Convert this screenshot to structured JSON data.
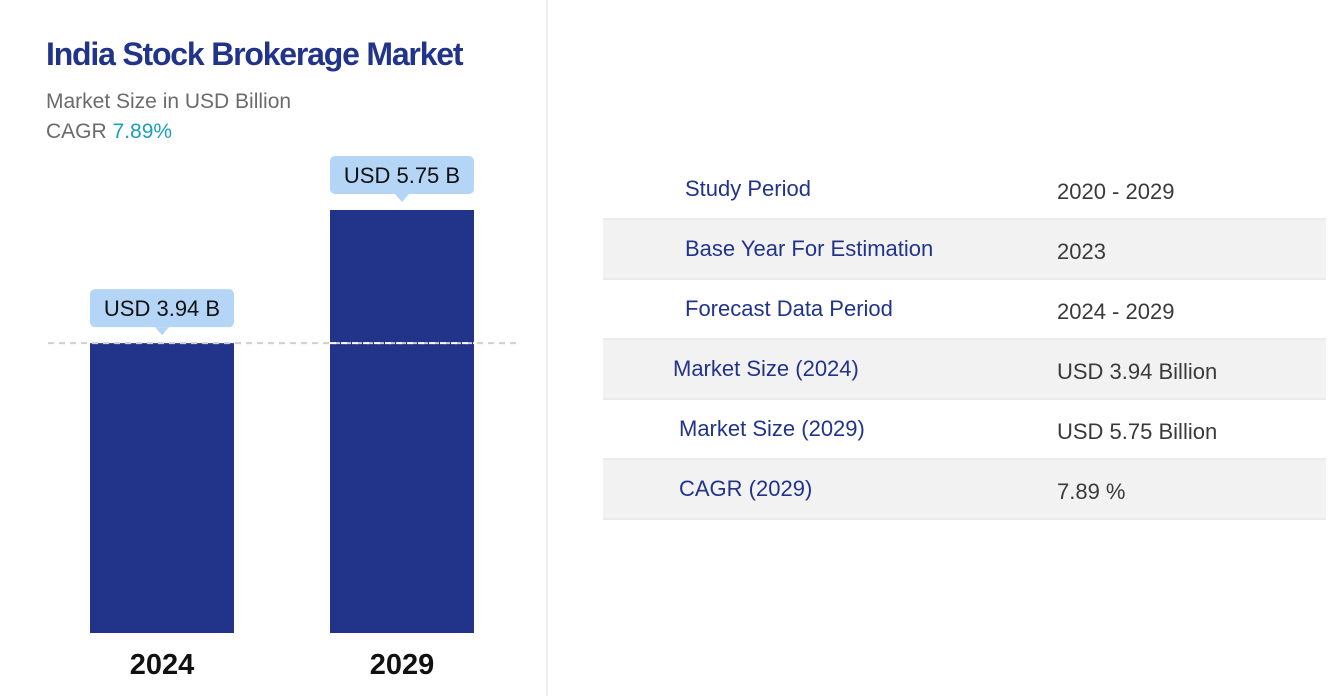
{
  "header": {
    "title": "India Stock Brokerage Market",
    "subtitle": "Market Size in USD Billion",
    "cagr_label": "CAGR",
    "cagr_value": "7.89%"
  },
  "colors": {
    "bar": "#22348a",
    "callout": "#b5d5f7",
    "title": "#22348a",
    "cagr": "#1aa0b8"
  },
  "chart_data": {
    "type": "bar",
    "title": "India Stock Brokerage Market",
    "subtitle": "Market Size in USD Billion",
    "categories": [
      "2024",
      "2029"
    ],
    "values": [
      3.94,
      5.75
    ],
    "value_labels": [
      "USD 3.94 B",
      "USD 5.75 B"
    ],
    "xlabel": "",
    "ylabel": "",
    "ylim": [
      0,
      5.75
    ],
    "grid": false,
    "reference_line": "dashed line at the 2024 value",
    "legend": "none"
  },
  "summary_table": {
    "rows": [
      {
        "label": "Study Period",
        "value": "2020 - 2029"
      },
      {
        "label": "Base Year For Estimation",
        "value": "2023"
      },
      {
        "label": "Forecast Data Period",
        "value": "2024 - 2029"
      },
      {
        "label": "Market Size (2024)",
        "value": "USD 3.94 Billion"
      },
      {
        "label": "Market Size (2029)",
        "value": "USD 5.75 Billion"
      },
      {
        "label": "CAGR (2029)",
        "value": "7.89 %"
      }
    ]
  }
}
